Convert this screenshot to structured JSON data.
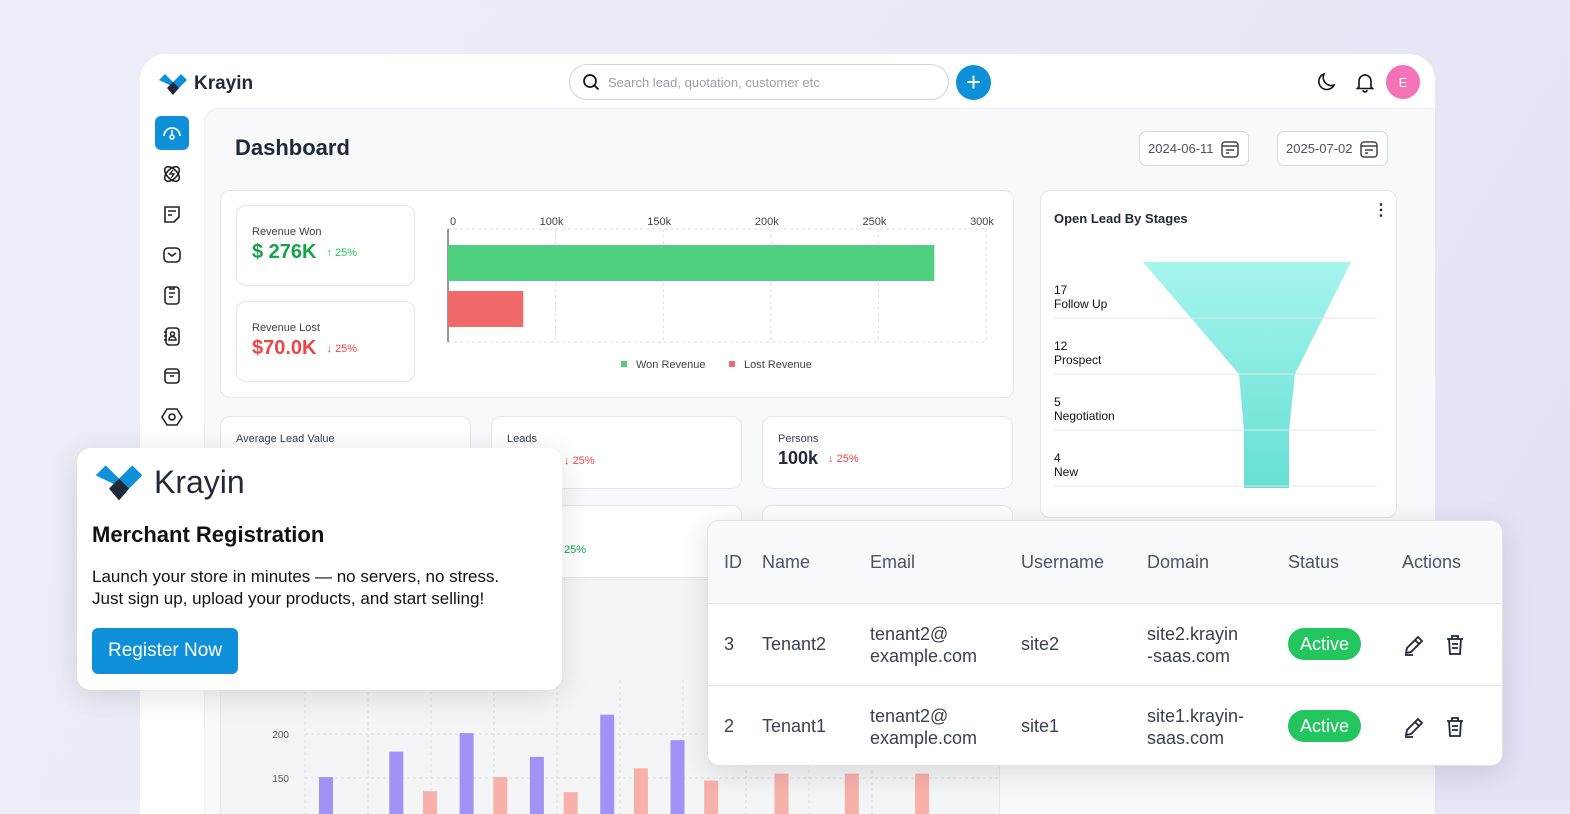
{
  "app": {
    "name": "Krayin"
  },
  "header": {
    "search_placeholder": "Search lead, quotation, customer etc",
    "avatar_initial": "E"
  },
  "sidebar": {
    "items": [
      "dashboard",
      "leads",
      "quotes",
      "mail",
      "activities",
      "contacts",
      "products",
      "settings"
    ]
  },
  "dashboard": {
    "title": "Dashboard",
    "start_date": "2024-06-11",
    "end_date": "2025-07-02",
    "revenue_won": {
      "label": "Revenue Won",
      "value": "$ 276K",
      "change": "25%",
      "direction": "up"
    },
    "revenue_lost": {
      "label": "Revenue Lost",
      "value": "$70.0K",
      "change": "25%",
      "direction": "down"
    },
    "stats": [
      {
        "label": "Average Lead Value",
        "value": "",
        "change": ""
      },
      {
        "label": "Leads",
        "value": "",
        "change": "25%"
      },
      {
        "label": "Persons",
        "value": "100k",
        "change": "25%"
      }
    ],
    "row3_change": "25%",
    "funnel": {
      "title": "Open Lead By Stages",
      "stages": [
        {
          "count": "17",
          "name": "Follow Up"
        },
        {
          "count": "12",
          "name": "Prospect"
        },
        {
          "count": "5",
          "name": "Negotiation"
        },
        {
          "count": "4",
          "name": "New"
        }
      ]
    },
    "colors": {
      "accent": "#0e90d9",
      "won": "#4ed07e",
      "lost": "#f06a6a",
      "funnel": "#7ee8dc",
      "purple": "#a093f5",
      "pink": "#f8b0ab"
    }
  },
  "chart_data": [
    {
      "type": "bar",
      "orientation": "horizontal",
      "ticks": [
        "0",
        "100k",
        "150k",
        "200k",
        "250k",
        "300k"
      ],
      "series": [
        {
          "name": "Won Revenue",
          "values": [
            276000
          ]
        },
        {
          "name": "Lost Revenue",
          "values": [
            70000
          ]
        }
      ],
      "legend": "bottom",
      "grid": true
    },
    {
      "type": "bar",
      "yticks": [
        "200",
        "150"
      ],
      "series": [
        {
          "values": [
            151,
            180,
            201,
            174,
            222,
            193
          ]
        },
        {
          "values": [
            135,
            151,
            134,
            161,
            147,
            155,
            155,
            155
          ]
        }
      ],
      "grid": true
    }
  ],
  "popup": {
    "title": "Merchant Registration",
    "line1": "Launch your store in minutes — no servers, no stress.",
    "line2": "Just sign up, upload your products, and start selling!",
    "button": "Register Now"
  },
  "table": {
    "headers": [
      "ID",
      "Name",
      "Email",
      "Username",
      "Domain",
      "Status",
      "Actions"
    ],
    "rows": [
      {
        "id": "3",
        "name": "Tenant2",
        "email1": "tenant2@",
        "email2": "example.com",
        "username": "site2",
        "domain1": "site2.krayin",
        "domain2": "-saas.com",
        "status": "Active"
      },
      {
        "id": "2",
        "name": "Tenant1",
        "email1": "tenant2@",
        "email2": "example.com",
        "username": "site1",
        "domain1": "site1.krayin-",
        "domain2": "saas.com",
        "status": "Active"
      }
    ]
  }
}
